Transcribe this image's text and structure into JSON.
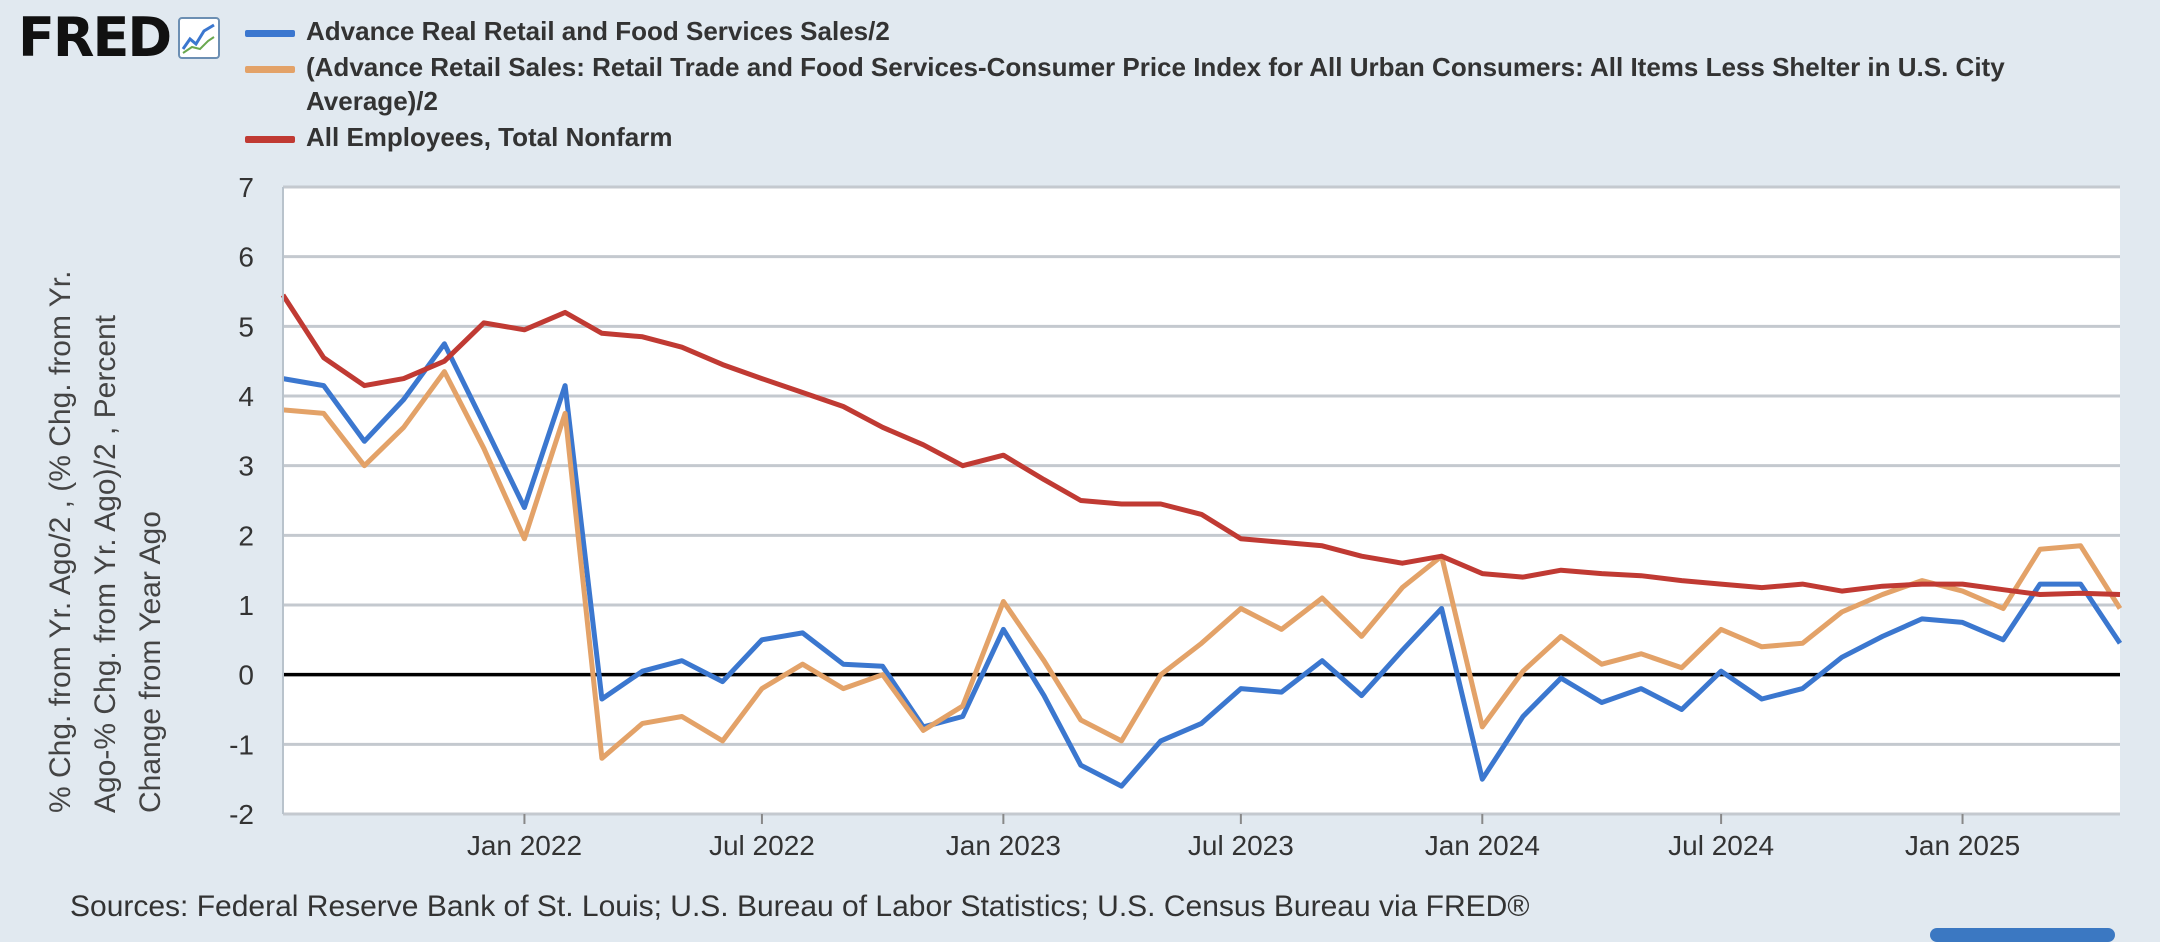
{
  "logo": {
    "text": "FRED",
    "icon": "line-chart-icon"
  },
  "source": "Sources: Federal Reserve Bank of St. Louis; U.S. Bureau of Labor Statistics; U.S. Census Bureau via FRED®",
  "chart_data": {
    "type": "line",
    "title": "",
    "ylabel_lines": [
      "% Chg. from Yr. Ago/2 , (% Chg. from Yr.",
      "Ago-% Chg. from Yr. Ago)/2 , Percent",
      "Change from Year Ago"
    ],
    "xlabel": "",
    "ylim": [
      -2,
      7
    ],
    "yticks": [
      -2,
      -1,
      0,
      1,
      2,
      3,
      4,
      5,
      6,
      7
    ],
    "ytick_labels": [
      "-2",
      "-1",
      "0",
      "1",
      "2",
      "3",
      "4",
      "5",
      "6",
      "7"
    ],
    "xlim": [
      "2021-07-01",
      "2025-05-01"
    ],
    "xticks": [
      "2022-01-01",
      "2022-07-01",
      "2023-01-01",
      "2023-07-01",
      "2024-01-01",
      "2024-07-01",
      "2025-01-01"
    ],
    "xtick_labels": [
      "Jan 2022",
      "Jul 2022",
      "Jan 2023",
      "Jul 2023",
      "Jan 2024",
      "Jul 2024",
      "Jan 2025"
    ],
    "grid": true,
    "legend_position": "top",
    "zero_line": true,
    "x": [
      "2021-07",
      "2021-08",
      "2021-09",
      "2021-10",
      "2021-11",
      "2021-12",
      "2022-01",
      "2022-02",
      "2022-03",
      "2022-04",
      "2022-05",
      "2022-06",
      "2022-07",
      "2022-08",
      "2022-09",
      "2022-10",
      "2022-11",
      "2022-12",
      "2023-01",
      "2023-02",
      "2023-03",
      "2023-04",
      "2023-05",
      "2023-06",
      "2023-07",
      "2023-08",
      "2023-09",
      "2023-10",
      "2023-11",
      "2023-12",
      "2024-01",
      "2024-02",
      "2024-03",
      "2024-04",
      "2024-05",
      "2024-06",
      "2024-07",
      "2024-08",
      "2024-09",
      "2024-10",
      "2024-11",
      "2024-12",
      "2025-01",
      "2025-02",
      "2025-03",
      "2025-04",
      "2025-05"
    ],
    "series": [
      {
        "name": "Advance Real Retail and Food Services Sales/2",
        "color": "#3b77cf",
        "values": [
          4.25,
          4.15,
          3.35,
          3.95,
          4.75,
          3.6,
          2.4,
          4.15,
          -0.35,
          0.05,
          0.2,
          -0.1,
          0.5,
          0.6,
          0.15,
          0.12,
          -0.75,
          -0.6,
          0.65,
          -0.3,
          -1.3,
          -1.6,
          -0.95,
          -0.7,
          -0.2,
          -0.25,
          0.2,
          -0.3,
          0.35,
          0.95,
          -1.5,
          -0.6,
          -0.05,
          -0.4,
          -0.2,
          -0.5,
          0.05,
          -0.35,
          -0.2,
          0.25,
          0.55,
          0.8,
          0.75,
          0.5,
          1.3,
          1.3,
          0.45
        ]
      },
      {
        "name": "(Advance Retail Sales: Retail Trade and Food Services-Consumer Price Index for All Urban Consumers: All Items Less Shelter in U.S. City Average)/2",
        "color": "#e3a268",
        "values": [
          3.8,
          3.75,
          3.0,
          3.55,
          4.35,
          3.25,
          1.95,
          3.75,
          -1.2,
          -0.7,
          -0.6,
          -0.95,
          -0.2,
          0.15,
          -0.2,
          0.0,
          -0.8,
          -0.45,
          1.05,
          0.2,
          -0.65,
          -0.95,
          0.0,
          0.45,
          0.95,
          0.65,
          1.1,
          0.55,
          1.25,
          1.7,
          -0.75,
          0.05,
          0.55,
          0.15,
          0.3,
          0.1,
          0.65,
          0.4,
          0.45,
          0.9,
          1.15,
          1.35,
          1.2,
          0.95,
          1.8,
          1.85,
          0.95
        ]
      },
      {
        "name": "All Employees, Total Nonfarm",
        "color": "#c03a33",
        "values": [
          5.45,
          4.55,
          4.15,
          4.25,
          4.5,
          5.05,
          4.95,
          5.2,
          4.9,
          4.85,
          4.7,
          4.45,
          4.25,
          4.05,
          3.85,
          3.55,
          3.3,
          3.0,
          3.15,
          2.8,
          2.5,
          2.45,
          2.45,
          2.3,
          1.95,
          1.9,
          1.85,
          1.7,
          1.6,
          1.7,
          1.45,
          1.4,
          1.5,
          1.45,
          1.42,
          1.35,
          1.3,
          1.25,
          1.3,
          1.2,
          1.27,
          1.3,
          1.3,
          1.22,
          1.15,
          1.17,
          1.15
        ]
      }
    ]
  }
}
